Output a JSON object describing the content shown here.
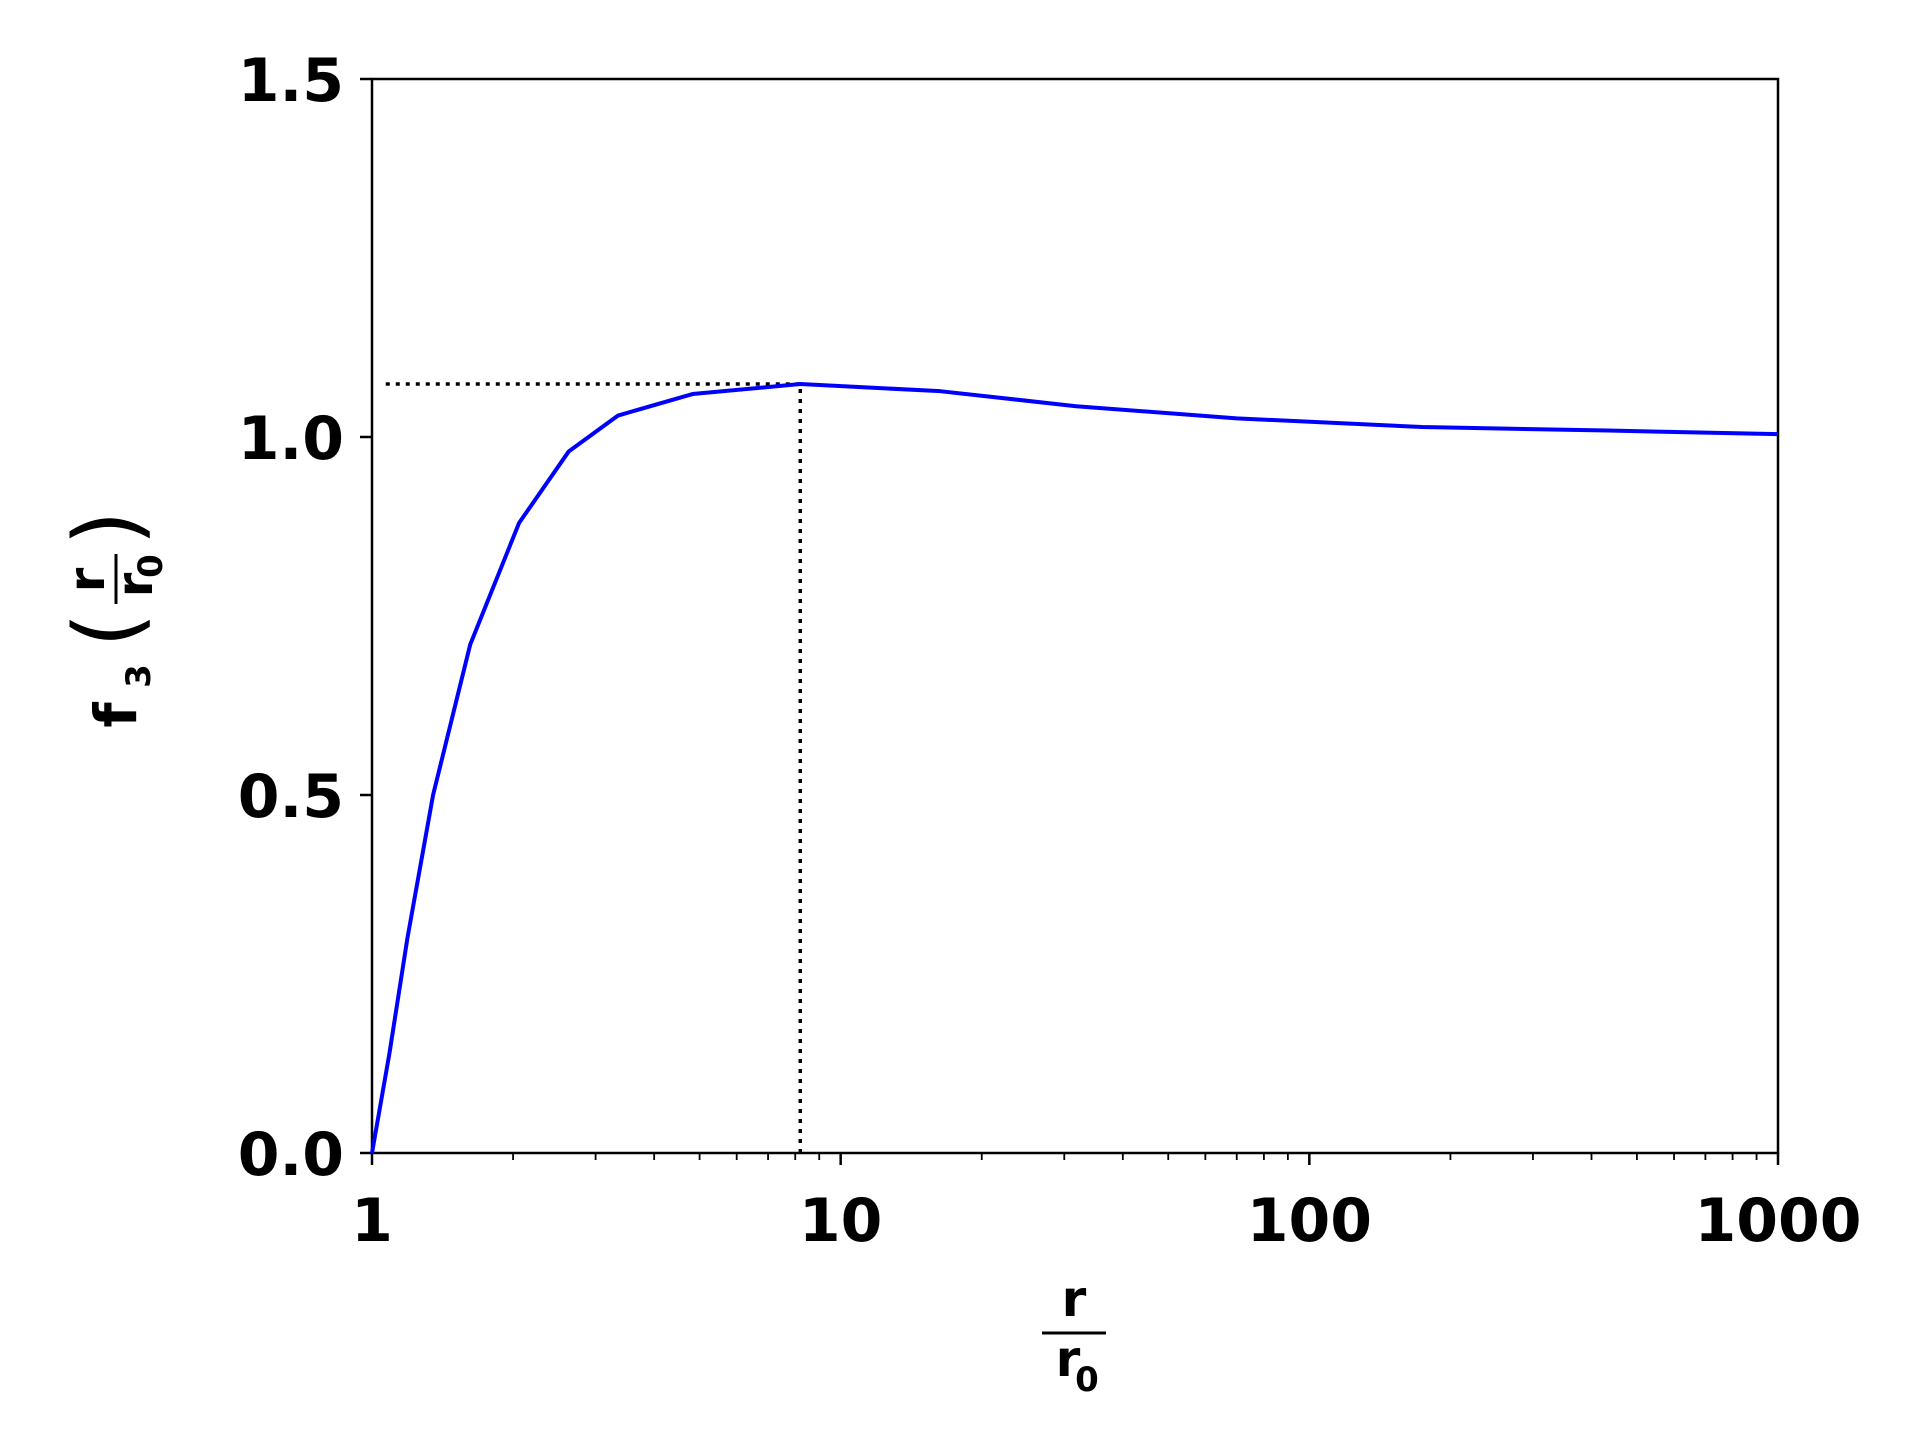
{
  "chart_data": {
    "type": "line",
    "xlabel": {
      "numerator": "r",
      "denominator": "r",
      "denominator_subscript": "0"
    },
    "ylabel": {
      "text": "f",
      "subscript": "3",
      "open_paren": "(",
      "numerator": "r",
      "denominator": "r",
      "denominator_subscript": "0",
      "close_paren": ")"
    },
    "x": [
      1,
      1.09,
      1.19,
      1.35,
      1.62,
      2.06,
      2.63,
      3.35,
      4.83,
      8.2,
      16.3,
      31.8,
      70,
      174,
      433,
      1000
    ],
    "series": [
      {
        "color": "#0000ff",
        "values": [
          0,
          0.14,
          0.3,
          0.5,
          0.71,
          0.88,
          0.98,
          1.03,
          1.06,
          1.074,
          1.064,
          1.043,
          1.026,
          1.014,
          1.009,
          1.004
        ]
      }
    ],
    "xscale": "log",
    "xlim": [
      1,
      1000
    ],
    "ylim": [
      0,
      1.5
    ],
    "xticks": [
      1,
      10,
      100,
      1000
    ],
    "xminorticks": [
      2,
      3,
      4,
      5,
      6,
      7,
      8,
      9,
      20,
      30,
      40,
      50,
      60,
      70,
      80,
      90,
      200,
      300,
      400,
      500,
      600,
      700,
      800,
      900
    ],
    "yticks": [
      {
        "value": 0,
        "label": "0.0"
      },
      0.5,
      {
        "value": 1,
        "label": "1.0"
      },
      1.5
    ],
    "reference": {
      "x": 8.2,
      "y": 1.074,
      "hline_xmin": 1.07
    }
  }
}
